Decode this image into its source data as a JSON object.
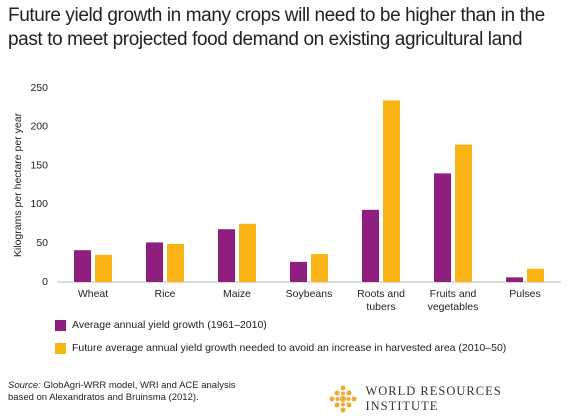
{
  "chart_data": {
    "type": "bar",
    "title": "Future yield growth in many crops will need to be higher than in the past to meet projected food demand on existing agricultural land",
    "y_label": "Kilograms per hectare per year",
    "categories": [
      "Wheat",
      "Rice",
      "Maize",
      "Soybeans",
      "Roots and tubers",
      "Fruits and vegetables",
      "Pulses"
    ],
    "series": [
      {
        "name": "Average annual yield growth (1961–2010)",
        "color": "#8e1f7e",
        "values": [
          41,
          51,
          68,
          26,
          93,
          140,
          6
        ]
      },
      {
        "name": "Future average annual yield growth needed to avoid an increase in harvested area (2010–50)",
        "color": "#fbb415",
        "values": [
          35,
          49,
          75,
          36,
          234,
          177,
          17
        ]
      }
    ],
    "ylim": [
      0,
      250
    ],
    "yticks": [
      0,
      50,
      100,
      150,
      200,
      250
    ],
    "grid": false,
    "source_label": "Source:",
    "source_text": "GlobAgri-WRR model, WRI and ACE analysis based on Alexandratos and Bruinsma (2012).",
    "logo_text": "WORLD RESOURCES INSTITUTE"
  }
}
